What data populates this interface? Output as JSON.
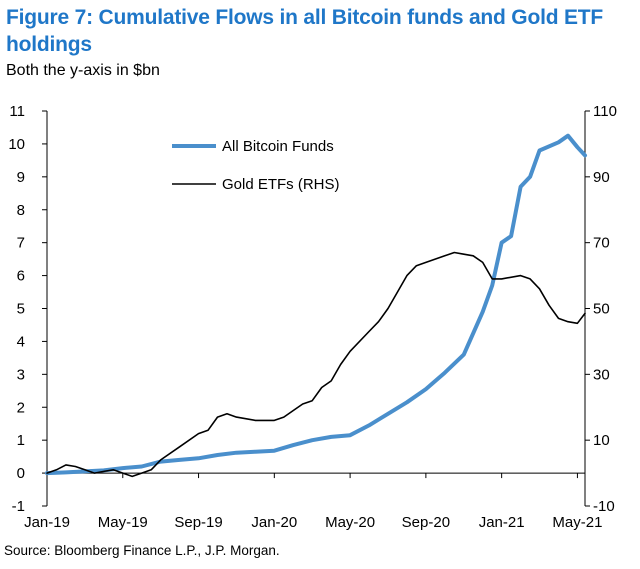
{
  "title": "Figure 7: Cumulative Flows in all Bitcoin funds and Gold ETF holdings",
  "subtitle": "Both the y-axis in $bn",
  "source": "Source: Bloomberg Finance L.P., J.P. Morgan.",
  "colors": {
    "title": "#1f77c8",
    "bitcoin": "#4a8fcc",
    "gold": "#000000"
  },
  "chart_data": {
    "type": "line",
    "title": "Cumulative Flows in all Bitcoin funds and Gold ETF holdings",
    "x_ticks": [
      {
        "t": 0,
        "label": "Jan-19"
      },
      {
        "t": 4,
        "label": "May-19"
      },
      {
        "t": 8,
        "label": "Sep-19"
      },
      {
        "t": 12,
        "label": "Jan-20"
      },
      {
        "t": 16,
        "label": "May-20"
      },
      {
        "t": 20,
        "label": "Sep-20"
      },
      {
        "t": 24,
        "label": "Jan-21"
      },
      {
        "t": 28,
        "label": "May-21"
      }
    ],
    "x_range": [
      0,
      28.4
    ],
    "y_left": {
      "range": [
        -1,
        11
      ],
      "ticks": [
        -1,
        0,
        1,
        2,
        3,
        4,
        5,
        6,
        7,
        8,
        9,
        10,
        11
      ]
    },
    "y_right": {
      "range": [
        -10,
        110
      ],
      "ticks": [
        -10,
        10,
        30,
        50,
        70,
        90,
        110
      ],
      "label": "RHS"
    },
    "legend_position": "top-center",
    "series": [
      {
        "name": "All Bitcoin Funds",
        "axis": "left",
        "color": "#4a8fcc",
        "points": [
          [
            0,
            0.0
          ],
          [
            1,
            0.02
          ],
          [
            2,
            0.05
          ],
          [
            3,
            0.08
          ],
          [
            4,
            0.15
          ],
          [
            5,
            0.2
          ],
          [
            6,
            0.35
          ],
          [
            7,
            0.4
          ],
          [
            8,
            0.45
          ],
          [
            9,
            0.55
          ],
          [
            10,
            0.62
          ],
          [
            11,
            0.65
          ],
          [
            12,
            0.68
          ],
          [
            13,
            0.85
          ],
          [
            14,
            1.0
          ],
          [
            15,
            1.1
          ],
          [
            16,
            1.15
          ],
          [
            17,
            1.45
          ],
          [
            18,
            1.8
          ],
          [
            19,
            2.15
          ],
          [
            20,
            2.55
          ],
          [
            21,
            3.05
          ],
          [
            22,
            3.6
          ],
          [
            23,
            4.9
          ],
          [
            23.5,
            5.7
          ],
          [
            24,
            7.0
          ],
          [
            24.5,
            7.2
          ],
          [
            25,
            8.7
          ],
          [
            25.5,
            9.0
          ],
          [
            26,
            9.8
          ],
          [
            27,
            10.05
          ],
          [
            27.5,
            10.25
          ],
          [
            28,
            9.9
          ],
          [
            28.4,
            9.65
          ]
        ]
      },
      {
        "name": "Gold ETFs (RHS)",
        "axis": "right",
        "color": "#000000",
        "points": [
          [
            0,
            0
          ],
          [
            0.5,
            1
          ],
          [
            1,
            2.5
          ],
          [
            1.5,
            2
          ],
          [
            2,
            1
          ],
          [
            2.5,
            0
          ],
          [
            3,
            0.5
          ],
          [
            3.5,
            1
          ],
          [
            4,
            0
          ],
          [
            4.5,
            -1
          ],
          [
            5,
            0
          ],
          [
            5.5,
            1
          ],
          [
            6,
            4
          ],
          [
            7,
            8
          ],
          [
            8,
            12
          ],
          [
            8.5,
            13
          ],
          [
            9,
            17
          ],
          [
            9.5,
            18
          ],
          [
            10,
            17
          ],
          [
            11,
            16
          ],
          [
            12,
            16
          ],
          [
            12.5,
            17
          ],
          [
            13,
            19
          ],
          [
            13.5,
            21
          ],
          [
            14,
            22
          ],
          [
            14.5,
            26
          ],
          [
            15,
            28
          ],
          [
            15.5,
            33
          ],
          [
            16,
            37
          ],
          [
            17,
            43
          ],
          [
            17.5,
            46
          ],
          [
            18,
            50
          ],
          [
            18.5,
            55
          ],
          [
            19,
            60
          ],
          [
            19.5,
            63
          ],
          [
            20,
            64
          ],
          [
            21,
            66
          ],
          [
            21.5,
            67
          ],
          [
            22,
            66.5
          ],
          [
            22.5,
            66
          ],
          [
            23,
            64
          ],
          [
            23.5,
            59
          ],
          [
            24,
            59
          ],
          [
            25,
            60
          ],
          [
            25.5,
            59
          ],
          [
            26,
            56
          ],
          [
            26.5,
            51
          ],
          [
            27,
            47
          ],
          [
            27.5,
            46
          ],
          [
            28,
            45.5
          ],
          [
            28.4,
            48.5
          ]
        ]
      }
    ]
  }
}
